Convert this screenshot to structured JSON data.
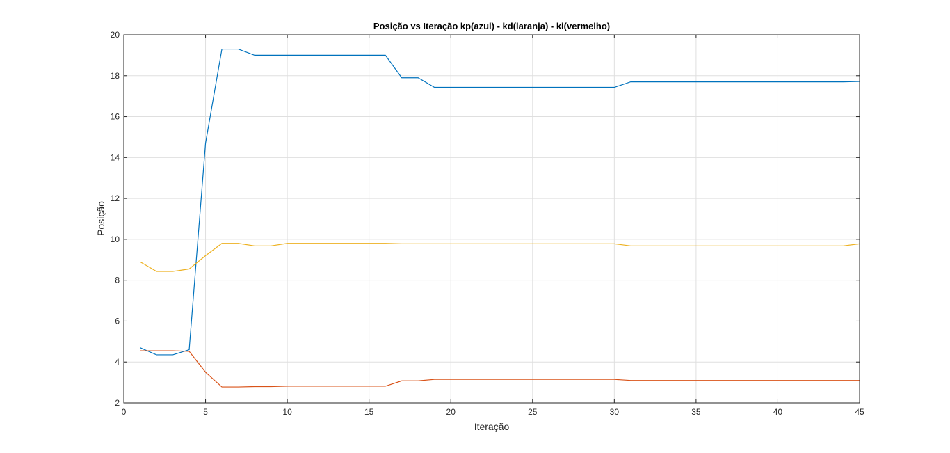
{
  "chart_data": {
    "type": "line",
    "title": "Posição vs Iteração kp(azul) - kd(laranja) - ki(vermelho)",
    "xlabel": "Iteração",
    "ylabel": "Posição",
    "xlim": [
      0,
      45
    ],
    "ylim": [
      2,
      20
    ],
    "xticks": [
      0,
      5,
      10,
      15,
      20,
      25,
      30,
      35,
      40,
      45
    ],
    "yticks": [
      2,
      4,
      6,
      8,
      10,
      12,
      14,
      16,
      18,
      20
    ],
    "grid": true,
    "series": [
      {
        "color": "#0072BD",
        "points": [
          [
            1,
            4.7
          ],
          [
            2,
            4.35
          ],
          [
            3,
            4.35
          ],
          [
            4,
            4.6
          ],
          [
            5,
            14.7
          ],
          [
            6,
            19.3
          ],
          [
            7,
            19.3
          ],
          [
            8,
            19.0
          ],
          [
            9,
            19.0
          ],
          [
            10,
            19.0
          ],
          [
            11,
            19.0
          ],
          [
            12,
            19.0
          ],
          [
            13,
            19.0
          ],
          [
            14,
            19.0
          ],
          [
            15,
            19.0
          ],
          [
            16,
            19.0
          ],
          [
            17,
            17.9
          ],
          [
            18,
            17.9
          ],
          [
            19,
            17.43
          ],
          [
            20,
            17.43
          ],
          [
            21,
            17.43
          ],
          [
            22,
            17.43
          ],
          [
            23,
            17.43
          ],
          [
            24,
            17.43
          ],
          [
            25,
            17.43
          ],
          [
            26,
            17.43
          ],
          [
            27,
            17.43
          ],
          [
            28,
            17.43
          ],
          [
            29,
            17.43
          ],
          [
            30,
            17.43
          ],
          [
            31,
            17.7
          ],
          [
            32,
            17.7
          ],
          [
            33,
            17.7
          ],
          [
            34,
            17.7
          ],
          [
            35,
            17.7
          ],
          [
            36,
            17.7
          ],
          [
            37,
            17.7
          ],
          [
            38,
            17.7
          ],
          [
            39,
            17.7
          ],
          [
            40,
            17.7
          ],
          [
            41,
            17.7
          ],
          [
            42,
            17.7
          ],
          [
            43,
            17.7
          ],
          [
            44,
            17.7
          ],
          [
            45,
            17.72
          ]
        ]
      },
      {
        "color": "#D95319",
        "points": [
          [
            1,
            4.55
          ],
          [
            2,
            4.55
          ],
          [
            3,
            4.55
          ],
          [
            4,
            4.52
          ],
          [
            5,
            3.5
          ],
          [
            6,
            2.78
          ],
          [
            7,
            2.78
          ],
          [
            8,
            2.8
          ],
          [
            9,
            2.8
          ],
          [
            10,
            2.82
          ],
          [
            11,
            2.82
          ],
          [
            12,
            2.82
          ],
          [
            13,
            2.82
          ],
          [
            14,
            2.82
          ],
          [
            15,
            2.82
          ],
          [
            16,
            2.82
          ],
          [
            17,
            3.08
          ],
          [
            18,
            3.08
          ],
          [
            19,
            3.15
          ],
          [
            20,
            3.15
          ],
          [
            21,
            3.15
          ],
          [
            22,
            3.15
          ],
          [
            23,
            3.15
          ],
          [
            24,
            3.15
          ],
          [
            25,
            3.15
          ],
          [
            26,
            3.15
          ],
          [
            27,
            3.15
          ],
          [
            28,
            3.15
          ],
          [
            29,
            3.15
          ],
          [
            30,
            3.15
          ],
          [
            31,
            3.1
          ],
          [
            32,
            3.1
          ],
          [
            33,
            3.1
          ],
          [
            34,
            3.1
          ],
          [
            35,
            3.1
          ],
          [
            36,
            3.1
          ],
          [
            37,
            3.1
          ],
          [
            38,
            3.1
          ],
          [
            39,
            3.1
          ],
          [
            40,
            3.1
          ],
          [
            41,
            3.1
          ],
          [
            42,
            3.1
          ],
          [
            43,
            3.1
          ],
          [
            44,
            3.1
          ],
          [
            45,
            3.1
          ]
        ]
      },
      {
        "color": "#EDB120",
        "points": [
          [
            1,
            8.9
          ],
          [
            2,
            8.43
          ],
          [
            3,
            8.43
          ],
          [
            4,
            8.55
          ],
          [
            5,
            9.2
          ],
          [
            6,
            9.8
          ],
          [
            7,
            9.8
          ],
          [
            8,
            9.68
          ],
          [
            9,
            9.68
          ],
          [
            10,
            9.8
          ],
          [
            11,
            9.8
          ],
          [
            12,
            9.8
          ],
          [
            13,
            9.8
          ],
          [
            14,
            9.8
          ],
          [
            15,
            9.8
          ],
          [
            16,
            9.8
          ],
          [
            17,
            9.78
          ],
          [
            18,
            9.78
          ],
          [
            19,
            9.78
          ],
          [
            20,
            9.78
          ],
          [
            21,
            9.78
          ],
          [
            22,
            9.78
          ],
          [
            23,
            9.78
          ],
          [
            24,
            9.78
          ],
          [
            25,
            9.78
          ],
          [
            26,
            9.78
          ],
          [
            27,
            9.78
          ],
          [
            28,
            9.78
          ],
          [
            29,
            9.78
          ],
          [
            30,
            9.78
          ],
          [
            31,
            9.68
          ],
          [
            32,
            9.68
          ],
          [
            33,
            9.68
          ],
          [
            34,
            9.68
          ],
          [
            35,
            9.68
          ],
          [
            36,
            9.68
          ],
          [
            37,
            9.68
          ],
          [
            38,
            9.68
          ],
          [
            39,
            9.68
          ],
          [
            40,
            9.68
          ],
          [
            41,
            9.68
          ],
          [
            42,
            9.68
          ],
          [
            43,
            9.68
          ],
          [
            44,
            9.68
          ],
          [
            45,
            9.78
          ]
        ]
      }
    ]
  }
}
